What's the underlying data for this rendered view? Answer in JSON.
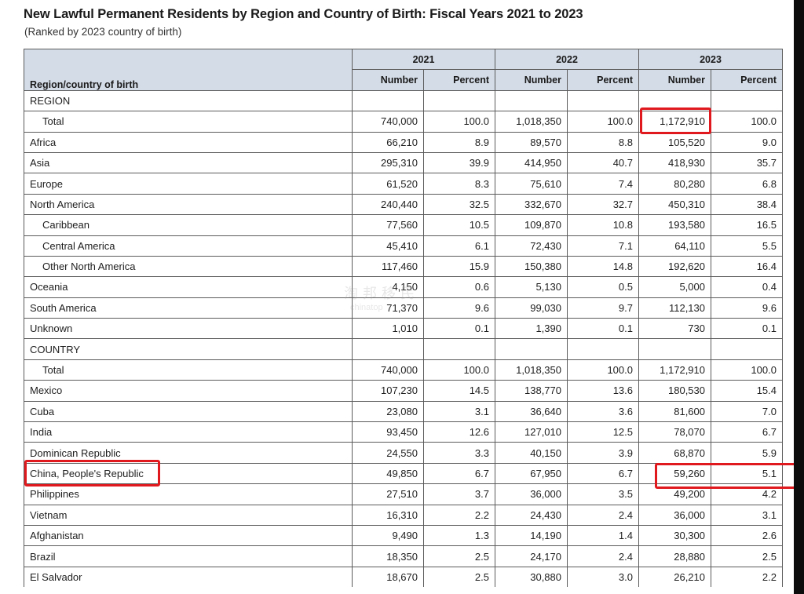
{
  "title": "New Lawful Permanent Residents by Region and Country of Birth: Fiscal Years 2021 to 2023",
  "subtitle": "(Ranked by 2023 country of birth)",
  "watermark": {
    "line1": "淘邦移民",
    "line2": "chinatop"
  },
  "table": {
    "rowhead": "Region/country of birth",
    "years": [
      "2021",
      "2022",
      "2023"
    ],
    "subcols": [
      "Number",
      "Percent",
      "Number",
      "Percent",
      "Number",
      "Percent"
    ],
    "rows": [
      {
        "name": "REGION",
        "indent": false,
        "cells": [
          "",
          "",
          "",
          "",
          "",
          ""
        ]
      },
      {
        "name": "Total",
        "indent": true,
        "cells": [
          "740,000",
          "100.0",
          "1,018,350",
          "100.0",
          "1,172,910",
          "100.0"
        ]
      },
      {
        "name": "Africa",
        "indent": false,
        "cells": [
          "66,210",
          "8.9",
          "89,570",
          "8.8",
          "105,520",
          "9.0"
        ]
      },
      {
        "name": "Asia",
        "indent": false,
        "cells": [
          "295,310",
          "39.9",
          "414,950",
          "40.7",
          "418,930",
          "35.7"
        ]
      },
      {
        "name": "Europe",
        "indent": false,
        "cells": [
          "61,520",
          "8.3",
          "75,610",
          "7.4",
          "80,280",
          "6.8"
        ]
      },
      {
        "name": "North America",
        "indent": false,
        "cells": [
          "240,440",
          "32.5",
          "332,670",
          "32.7",
          "450,310",
          "38.4"
        ]
      },
      {
        "name": "Caribbean",
        "indent": true,
        "cells": [
          "77,560",
          "10.5",
          "109,870",
          "10.8",
          "193,580",
          "16.5"
        ]
      },
      {
        "name": "Central America",
        "indent": true,
        "cells": [
          "45,410",
          "6.1",
          "72,430",
          "7.1",
          "64,110",
          "5.5"
        ]
      },
      {
        "name": "Other North America",
        "indent": true,
        "cells": [
          "117,460",
          "15.9",
          "150,380",
          "14.8",
          "192,620",
          "16.4"
        ]
      },
      {
        "name": "Oceania",
        "indent": false,
        "cells": [
          "4,150",
          "0.6",
          "5,130",
          "0.5",
          "5,000",
          "0.4"
        ]
      },
      {
        "name": "South America",
        "indent": false,
        "cells": [
          "71,370",
          "9.6",
          "99,030",
          "9.7",
          "112,130",
          "9.6"
        ]
      },
      {
        "name": "Unknown",
        "indent": false,
        "cells": [
          "1,010",
          "0.1",
          "1,390",
          "0.1",
          "730",
          "0.1"
        ]
      },
      {
        "name": "COUNTRY",
        "indent": false,
        "cells": [
          "",
          "",
          "",
          "",
          "",
          ""
        ]
      },
      {
        "name": "Total",
        "indent": true,
        "cells": [
          "740,000",
          "100.0",
          "1,018,350",
          "100.0",
          "1,172,910",
          "100.0"
        ]
      },
      {
        "name": "Mexico",
        "indent": false,
        "cells": [
          "107,230",
          "14.5",
          "138,770",
          "13.6",
          "180,530",
          "15.4"
        ]
      },
      {
        "name": "Cuba",
        "indent": false,
        "cells": [
          "23,080",
          "3.1",
          "36,640",
          "3.6",
          "81,600",
          "7.0"
        ]
      },
      {
        "name": "India",
        "indent": false,
        "cells": [
          "93,450",
          "12.6",
          "127,010",
          "12.5",
          "78,070",
          "6.7"
        ]
      },
      {
        "name": "Dominican Republic",
        "indent": false,
        "cells": [
          "24,550",
          "3.3",
          "40,150",
          "3.9",
          "68,870",
          "5.9"
        ]
      },
      {
        "name": "China, People's Republic",
        "indent": false,
        "cells": [
          "49,850",
          "6.7",
          "67,950",
          "6.7",
          "59,260",
          "5.1"
        ]
      },
      {
        "name": "Philippines",
        "indent": false,
        "cells": [
          "27,510",
          "3.7",
          "36,000",
          "3.5",
          "49,200",
          "4.2"
        ]
      },
      {
        "name": "Vietnam",
        "indent": false,
        "cells": [
          "16,310",
          "2.2",
          "24,430",
          "2.4",
          "36,000",
          "3.1"
        ]
      },
      {
        "name": "Afghanistan",
        "indent": false,
        "cells": [
          "9,490",
          "1.3",
          "14,190",
          "1.4",
          "30,300",
          "2.6"
        ]
      },
      {
        "name": "Brazil",
        "indent": false,
        "cells": [
          "18,350",
          "2.5",
          "24,170",
          "2.4",
          "28,880",
          "2.5"
        ]
      },
      {
        "name": "El Salvador",
        "indent": false,
        "cells": [
          "18,670",
          "2.5",
          "30,880",
          "3.0",
          "26,210",
          "2.2"
        ]
      }
    ]
  },
  "colors": {
    "header_bg": "#d4dce7",
    "highlight": "#e0191e",
    "border": "#5b5b5b"
  }
}
